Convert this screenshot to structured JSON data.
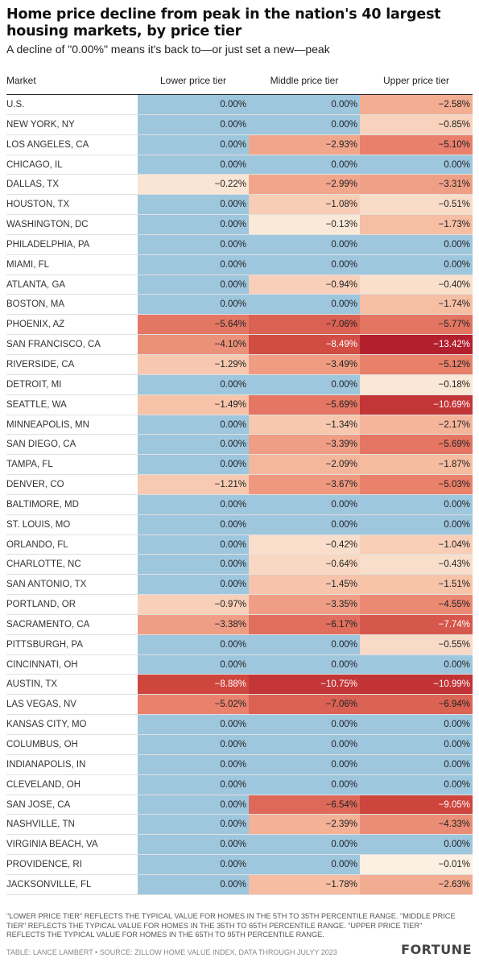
{
  "header": {
    "title": "Home price decline from peak in the nation's 40 largest housing markets, by price tier",
    "subtitle": "A decline of \"0.00%\" means it's back to—or just set a new—peak"
  },
  "footer": {
    "note": "\"LOWER PRICE TIER\" REFLECTS THE TYPICAL VALUE FOR HOMES IN THE 5TH TO 35TH PERCENTILE RANGE. \"MIDDLE PRICE TIER\" REFLECTS THE TYPICAL VALUE FOR HOMES IN THE 35TH TO 65TH PERCENTILE RANGE. \"UPPER PRICE TIER\" REFLECTS THE TYPICAL VALUE FOR HOMES IN THE 65TH TO 95TH PERCENTILE RANGE.",
    "credit": "TABLE: LANCE LAMBERT • SOURCE: ZILLOW HOME VALUE INDEX, DATA THROUGH JULYY 2023",
    "brand": "FORTUNE"
  },
  "colors": {
    "zero": "#9ec7de",
    "light": "#fbf1e3",
    "dark": "#b41f2e"
  },
  "chart_data": {
    "type": "table",
    "columns": [
      "Market",
      "Lower price tier",
      "Middle price tier",
      "Upper price tier"
    ],
    "rows": [
      {
        "market": "U.S.",
        "values": [
          "0.00%",
          "0.00%",
          "−2.58%"
        ]
      },
      {
        "market": "NEW YORK, NY",
        "values": [
          "0.00%",
          "0.00%",
          "−0.85%"
        ]
      },
      {
        "market": "LOS ANGELES, CA",
        "values": [
          "0.00%",
          "−2.93%",
          "−5.10%"
        ]
      },
      {
        "market": "CHICAGO, IL",
        "values": [
          "0.00%",
          "0.00%",
          "0.00%"
        ]
      },
      {
        "market": "DALLAS, TX",
        "values": [
          "−0.22%",
          "−2.99%",
          "−3.31%"
        ]
      },
      {
        "market": "HOUSTON, TX",
        "values": [
          "0.00%",
          "−1.08%",
          "−0.51%"
        ]
      },
      {
        "market": "WASHINGTON, DC",
        "values": [
          "0.00%",
          "−0.13%",
          "−1.73%"
        ]
      },
      {
        "market": "PHILADELPHIA, PA",
        "values": [
          "0.00%",
          "0.00%",
          "0.00%"
        ]
      },
      {
        "market": "MIAMI, FL",
        "values": [
          "0.00%",
          "0.00%",
          "0.00%"
        ]
      },
      {
        "market": "ATLANTA, GA",
        "values": [
          "0.00%",
          "−0.94%",
          "−0.40%"
        ]
      },
      {
        "market": "BOSTON, MA",
        "values": [
          "0.00%",
          "0.00%",
          "−1.74%"
        ]
      },
      {
        "market": "PHOENIX, AZ",
        "values": [
          "−5.64%",
          "−7.06%",
          "−5.77%"
        ]
      },
      {
        "market": "SAN FRANCISCO, CA",
        "values": [
          "−4.10%",
          "−8.49%",
          "−13.42%"
        ]
      },
      {
        "market": "RIVERSIDE, CA",
        "values": [
          "−1.29%",
          "−3.49%",
          "−5.12%"
        ]
      },
      {
        "market": "DETROIT, MI",
        "values": [
          "0.00%",
          "0.00%",
          "−0.18%"
        ]
      },
      {
        "market": "SEATTLE, WA",
        "values": [
          "−1.49%",
          "−5.69%",
          "−10.69%"
        ]
      },
      {
        "market": "MINNEAPOLIS, MN",
        "values": [
          "0.00%",
          "−1.34%",
          "−2.17%"
        ]
      },
      {
        "market": "SAN DIEGO, CA",
        "values": [
          "0.00%",
          "−3.39%",
          "−5.69%"
        ]
      },
      {
        "market": "TAMPA, FL",
        "values": [
          "0.00%",
          "−2.09%",
          "−1.87%"
        ]
      },
      {
        "market": "DENVER, CO",
        "values": [
          "−1.21%",
          "−3.67%",
          "−5.03%"
        ]
      },
      {
        "market": "BALTIMORE, MD",
        "values": [
          "0.00%",
          "0.00%",
          "0.00%"
        ]
      },
      {
        "market": "ST. LOUIS, MO",
        "values": [
          "0.00%",
          "0.00%",
          "0.00%"
        ]
      },
      {
        "market": "ORLANDO, FL",
        "values": [
          "0.00%",
          "−0.42%",
          "−1.04%"
        ]
      },
      {
        "market": "CHARLOTTE, NC",
        "values": [
          "0.00%",
          "−0.64%",
          "−0.43%"
        ]
      },
      {
        "market": "SAN ANTONIO, TX",
        "values": [
          "0.00%",
          "−1.45%",
          "−1.51%"
        ]
      },
      {
        "market": "PORTLAND, OR",
        "values": [
          "−0.97%",
          "−3.35%",
          "−4.55%"
        ]
      },
      {
        "market": "SACRAMENTO, CA",
        "values": [
          "−3.38%",
          "−6.17%",
          "−7.74%"
        ]
      },
      {
        "market": "PITTSBURGH, PA",
        "values": [
          "0.00%",
          "0.00%",
          "−0.55%"
        ]
      },
      {
        "market": "CINCINNATI, OH",
        "values": [
          "0.00%",
          "0.00%",
          "0.00%"
        ]
      },
      {
        "market": "AUSTIN, TX",
        "values": [
          "−8.88%",
          "−10.75%",
          "−10.99%"
        ]
      },
      {
        "market": "LAS VEGAS, NV",
        "values": [
          "−5.02%",
          "−7.06%",
          "−6.94%"
        ]
      },
      {
        "market": "KANSAS CITY, MO",
        "values": [
          "0.00%",
          "0.00%",
          "0.00%"
        ]
      },
      {
        "market": "COLUMBUS, OH",
        "values": [
          "0.00%",
          "0.00%",
          "0.00%"
        ]
      },
      {
        "market": "INDIANAPOLIS, IN",
        "values": [
          "0.00%",
          "0.00%",
          "0.00%"
        ]
      },
      {
        "market": "CLEVELAND, OH",
        "values": [
          "0.00%",
          "0.00%",
          "0.00%"
        ]
      },
      {
        "market": "SAN JOSE, CA",
        "values": [
          "0.00%",
          "−6.54%",
          "−9.05%"
        ]
      },
      {
        "market": "NASHVILLE, TN",
        "values": [
          "0.00%",
          "−2.39%",
          "−4.33%"
        ]
      },
      {
        "market": "VIRGINIA BEACH, VA",
        "values": [
          "0.00%",
          "0.00%",
          "0.00%"
        ]
      },
      {
        "market": "PROVIDENCE, RI",
        "values": [
          "0.00%",
          "0.00%",
          "−0.01%"
        ]
      },
      {
        "market": "JACKSONVILLE, FL",
        "values": [
          "0.00%",
          "−1.78%",
          "−2.63%"
        ]
      }
    ]
  }
}
